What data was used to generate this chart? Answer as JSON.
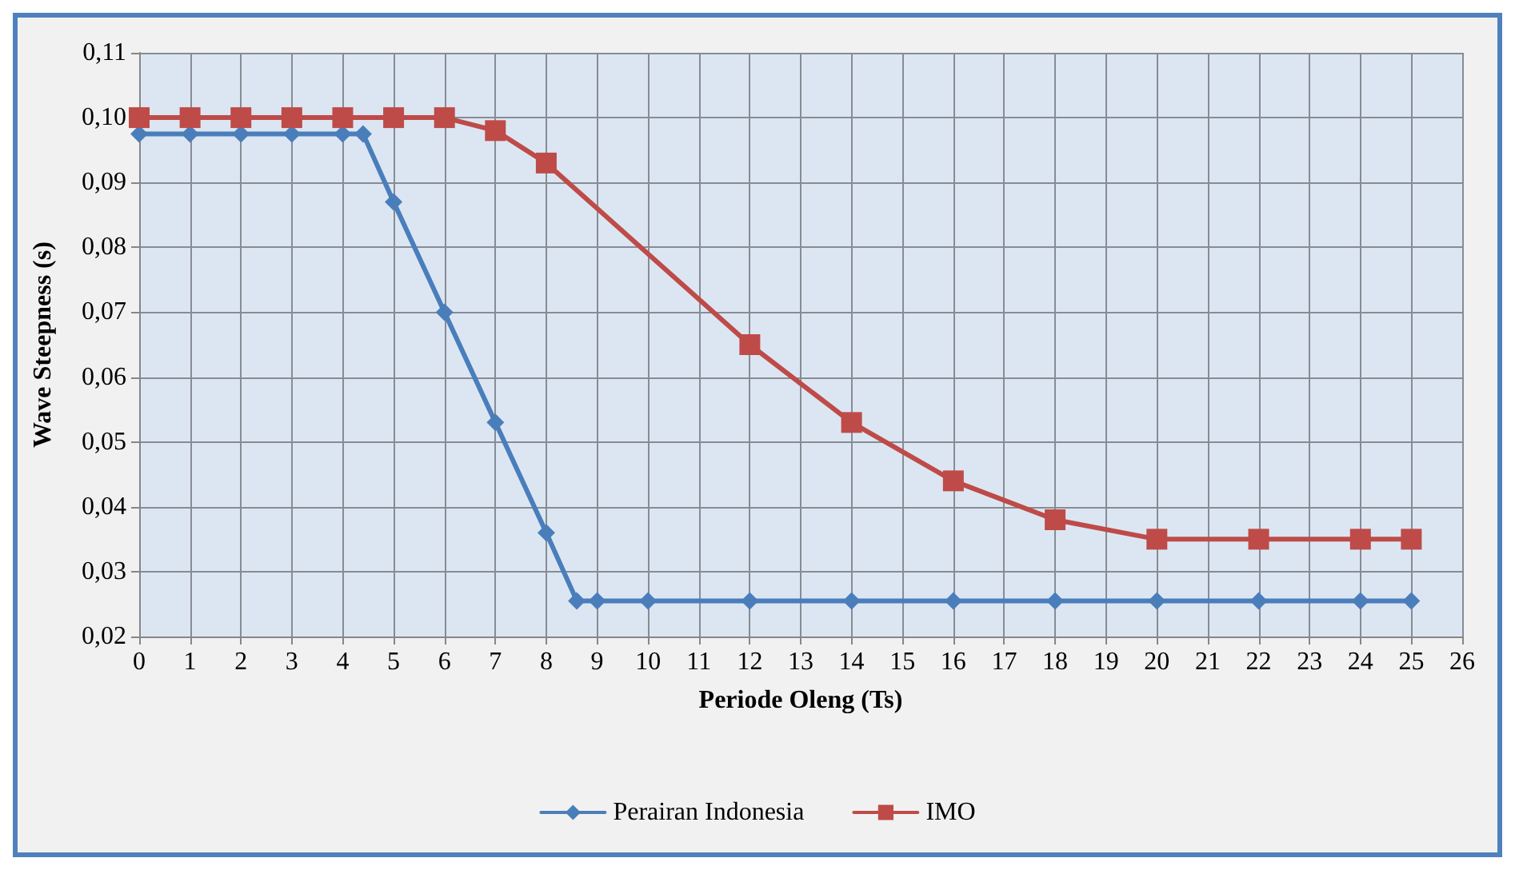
{
  "chart_data": {
    "type": "line",
    "xlabel": "Periode Oleng (Ts)",
    "ylabel": "Wave Steepness (s)",
    "xlim": [
      0,
      26
    ],
    "xticks": [
      0,
      1,
      2,
      3,
      4,
      5,
      6,
      7,
      8,
      9,
      10,
      11,
      12,
      13,
      14,
      15,
      16,
      17,
      18,
      19,
      20,
      21,
      22,
      23,
      24,
      25,
      26
    ],
    "ylim": [
      0.02,
      0.11
    ],
    "yticks": [
      {
        "value": 0.02,
        "label": "0,02"
      },
      {
        "value": 0.03,
        "label": "0,03"
      },
      {
        "value": 0.04,
        "label": "0,04"
      },
      {
        "value": 0.05,
        "label": "0,05"
      },
      {
        "value": 0.06,
        "label": "0,06"
      },
      {
        "value": 0.07,
        "label": "0,07"
      },
      {
        "value": 0.08,
        "label": "0,08"
      },
      {
        "value": 0.09,
        "label": "0,09"
      },
      {
        "value": 0.1,
        "label": "0,10"
      },
      {
        "value": 0.11,
        "label": "0,11"
      }
    ],
    "grid": true,
    "legend": "bottom",
    "line_style": "solid",
    "series": [
      {
        "name": "Perairan Indonesia",
        "color": "#4a7ebb",
        "marker": "diamond",
        "x": [
          0,
          1,
          2,
          3,
          4,
          4.4,
          5,
          6,
          7,
          8,
          8.6,
          9,
          10,
          12,
          14,
          16,
          18,
          20,
          22,
          24,
          25
        ],
        "values": [
          0.0975,
          0.0975,
          0.0975,
          0.0975,
          0.0975,
          0.0975,
          0.087,
          0.07,
          0.053,
          0.036,
          0.0255,
          0.0255,
          0.0255,
          0.0255,
          0.0255,
          0.0255,
          0.0255,
          0.0255,
          0.0255,
          0.0255,
          0.0255
        ]
      },
      {
        "name": "IMO",
        "color": "#be4b48",
        "marker": "square",
        "x": [
          0,
          1,
          2,
          3,
          4,
          5,
          6,
          7,
          8,
          12,
          14,
          16,
          18,
          20,
          22,
          24,
          25
        ],
        "values": [
          0.1,
          0.1,
          0.1,
          0.1,
          0.1,
          0.1,
          0.1,
          0.098,
          0.093,
          0.065,
          0.053,
          0.044,
          0.038,
          0.035,
          0.035,
          0.035,
          0.035
        ]
      }
    ]
  }
}
